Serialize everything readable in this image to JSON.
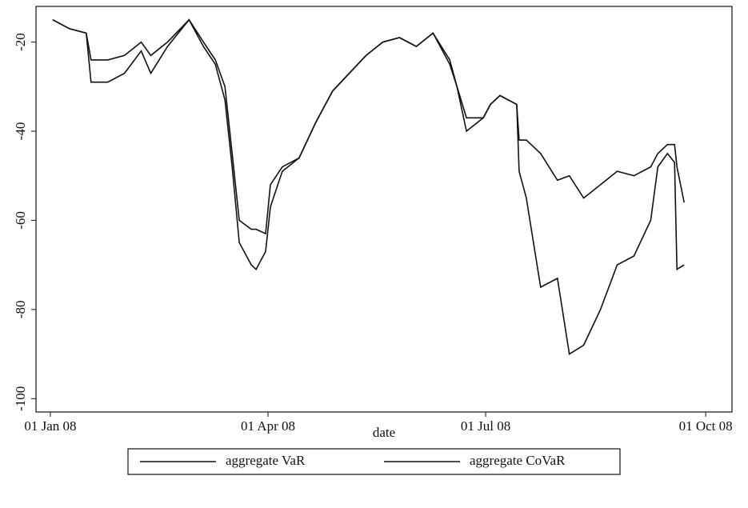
{
  "chart_data": {
    "type": "line",
    "x_label": "date",
    "x": [
      "2008-01-02",
      "2008-01-09",
      "2008-01-16",
      "2008-01-18",
      "2008-01-25",
      "2008-02-01",
      "2008-02-08",
      "2008-02-12",
      "2008-02-19",
      "2008-02-28",
      "2008-03-05",
      "2008-03-10",
      "2008-03-14",
      "2008-03-17",
      "2008-03-20",
      "2008-03-25",
      "2008-03-27",
      "2008-03-31",
      "2008-04-02",
      "2008-04-07",
      "2008-04-14",
      "2008-04-21",
      "2008-04-28",
      "2008-05-05",
      "2008-05-12",
      "2008-05-19",
      "2008-05-26",
      "2008-06-02",
      "2008-06-09",
      "2008-06-16",
      "2008-06-19",
      "2008-06-23",
      "2008-06-30",
      "2008-07-03",
      "2008-07-07",
      "2008-07-14",
      "2008-07-15",
      "2008-07-18",
      "2008-07-24",
      "2008-07-31",
      "2008-08-05",
      "2008-08-11",
      "2008-08-18",
      "2008-08-25",
      "2008-09-01",
      "2008-09-08",
      "2008-09-11",
      "2008-09-15",
      "2008-09-18",
      "2008-09-19",
      "2008-09-22"
    ],
    "series": [
      {
        "name": "aggregate VaR",
        "color": "#111111",
        "values": [
          -15,
          -17,
          -18,
          -24,
          -24,
          -23,
          -20,
          -23,
          -20,
          -15,
          -20,
          -24,
          -30,
          -45,
          -60,
          -62,
          -62,
          -63,
          -52,
          -48,
          -46,
          -38,
          -31,
          -27,
          -23,
          -20,
          -19,
          -21,
          -18,
          -25,
          -30,
          -37,
          -37,
          -34,
          -32,
          -34,
          -42,
          -42,
          -45,
          -51,
          -50,
          -55,
          -52,
          -49,
          -50,
          -48,
          -45,
          -43,
          -43,
          -48,
          -56
        ]
      },
      {
        "name": "aggregate CoVaR",
        "color": "#111111",
        "values": [
          -15,
          -17,
          -18,
          -29,
          -29,
          -27,
          -22,
          -27,
          -21,
          -15,
          -21,
          -25,
          -33,
          -48,
          -65,
          -70,
          -71,
          -67,
          -57,
          -49,
          -46,
          -38,
          -31,
          -27,
          -23,
          -20,
          -19,
          -21,
          -18,
          -24,
          -30,
          -40,
          -37,
          -34,
          -32,
          -34,
          -49,
          -55,
          -75,
          -73,
          -90,
          -88,
          -80,
          -70,
          -68,
          -60,
          -48,
          -45,
          -47,
          -71,
          -70
        ]
      }
    ],
    "xlim": [
      "2007-12-26",
      "2008-10-12"
    ],
    "xticks": [
      {
        "value": "2008-01-01",
        "label": "01 Jan 08"
      },
      {
        "value": "2008-04-01",
        "label": "01 Apr 08"
      },
      {
        "value": "2008-07-01",
        "label": "01 Jul 08"
      },
      {
        "value": "2008-10-01",
        "label": "01 Oct 08"
      }
    ],
    "ylim": [
      -103,
      -12
    ],
    "yticks": [
      -100,
      -80,
      -60,
      -40,
      -20
    ],
    "legend": "bottom"
  }
}
